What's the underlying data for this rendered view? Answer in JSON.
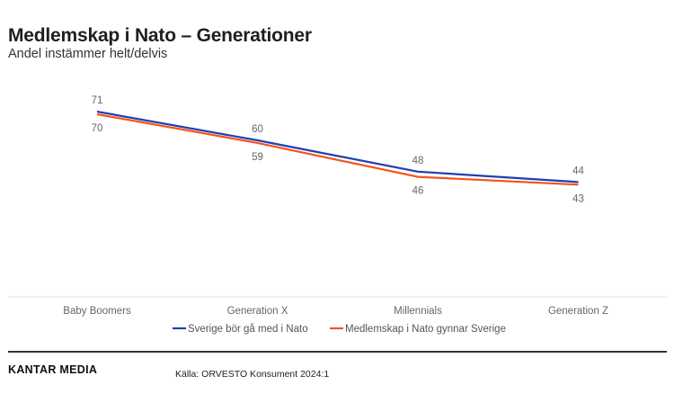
{
  "header": {
    "title": "Medlemskap i Nato – Generationer",
    "subtitle": "Andel instämmer helt/delvis"
  },
  "footer": {
    "brand": "KANTAR MEDIA",
    "source": "Källa: ORVESTO Konsument 2024:1"
  },
  "chart_data": {
    "type": "line",
    "title": "Medlemskap i Nato – Generationer",
    "subtitle": "Andel instämmer helt/delvis",
    "categories": [
      "Baby Boomers",
      "Generation X",
      "Millennials",
      "Generation Z"
    ],
    "series": [
      {
        "name": "Sverige bör gå med i Nato",
        "values": [
          71,
          60,
          48,
          44
        ],
        "color": "#1f3fae"
      },
      {
        "name": "Medlemskap i Nato gynnar Sverige",
        "values": [
          70,
          59,
          46,
          43
        ],
        "color": "#f5521e"
      }
    ],
    "ylim": [
      0,
      100
    ],
    "grid": false,
    "legend": "bottom",
    "data_labels": true
  }
}
